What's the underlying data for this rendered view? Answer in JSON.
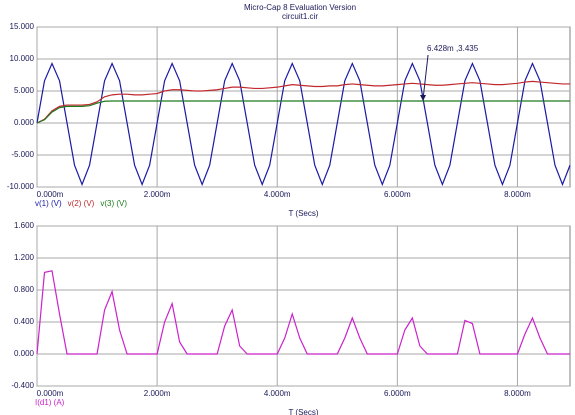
{
  "chart_data": [
    {
      "type": "line",
      "title": "Micro-Cap 8 Evaluation Version",
      "subtitle": "circuit1.cir",
      "x_label": "T (Secs)",
      "x": [
        0,
        0.125,
        0.25,
        0.375,
        0.5,
        0.625,
        0.75,
        0.875,
        1,
        1.125,
        1.25,
        1.375,
        1.5,
        1.625,
        1.75,
        1.875,
        2,
        2.125,
        2.25,
        2.375,
        2.5,
        2.625,
        2.75,
        2.875,
        3,
        3.125,
        3.25,
        3.375,
        3.5,
        3.625,
        3.75,
        3.875,
        4,
        4.125,
        4.25,
        4.375,
        4.5,
        4.625,
        4.75,
        4.875,
        5,
        5.125,
        5.25,
        5.375,
        5.5,
        5.625,
        5.75,
        5.875,
        6,
        6.125,
        6.25,
        6.375,
        6.5,
        6.625,
        6.75,
        6.875,
        7,
        7.125,
        7.25,
        7.375,
        7.5,
        7.625,
        7.75,
        7.875,
        8,
        8.125,
        8.25,
        8.375,
        8.5,
        8.625,
        8.75,
        8.875
      ],
      "series": [
        {
          "name": "v(1) (V)",
          "color": "#1a1aa6",
          "values": [
            0,
            6.6,
            9.3,
            6.6,
            0,
            -6.6,
            -9.6,
            -6.6,
            0,
            6.6,
            9.3,
            6.6,
            0,
            -6.6,
            -9.6,
            -6.6,
            0,
            6.6,
            9.3,
            6.6,
            0,
            -6.6,
            -9.6,
            -6.6,
            0,
            6.6,
            9.3,
            6.6,
            0,
            -6.6,
            -9.6,
            -6.6,
            0,
            6.6,
            9.3,
            6.6,
            0,
            -6.6,
            -9.6,
            -6.6,
            0,
            6.6,
            9.3,
            6.6,
            0,
            -6.6,
            -9.6,
            -6.6,
            0,
            6.6,
            9.3,
            6.6,
            0,
            -6.6,
            -9.6,
            -6.6,
            0,
            6.6,
            9.3,
            6.6,
            0,
            -6.6,
            -9.6,
            -6.6,
            0,
            6.6,
            9.3,
            6.6,
            0,
            -6.6,
            -9.6,
            -6.6
          ]
        },
        {
          "name": "v(2) (V)",
          "color": "#c0282d",
          "values": [
            0,
            0.6,
            1.9,
            2.6,
            2.8,
            2.8,
            2.8,
            2.9,
            3.3,
            4.1,
            4.4,
            4.5,
            4.5,
            4.4,
            4.4,
            4.5,
            4.6,
            5.0,
            5.2,
            5.2,
            5.1,
            5.0,
            5.0,
            5.1,
            5.2,
            5.4,
            5.6,
            5.6,
            5.5,
            5.4,
            5.4,
            5.5,
            5.6,
            5.8,
            6.0,
            5.9,
            5.8,
            5.7,
            5.7,
            5.8,
            5.8,
            6.0,
            6.1,
            6.0,
            5.9,
            5.8,
            5.8,
            5.9,
            6.0,
            6.1,
            6.2,
            6.1,
            6.0,
            5.9,
            5.9,
            6.0,
            6.1,
            6.2,
            6.3,
            6.2,
            6.1,
            6.0,
            6.0,
            6.1,
            6.2,
            6.4,
            6.5,
            6.4,
            6.3,
            6.2,
            6.1,
            6.1
          ]
        },
        {
          "name": "v(3) (V)",
          "color": "#1e7a1e",
          "values": [
            0,
            0.5,
            1.7,
            2.4,
            2.6,
            2.6,
            2.6,
            2.7,
            3.1,
            3.4,
            3.435,
            3.435,
            3.435,
            3.435,
            3.435,
            3.435,
            3.435,
            3.435,
            3.435,
            3.435,
            3.435,
            3.435,
            3.435,
            3.435,
            3.435,
            3.435,
            3.435,
            3.435,
            3.435,
            3.435,
            3.435,
            3.435,
            3.435,
            3.435,
            3.435,
            3.435,
            3.435,
            3.435,
            3.435,
            3.435,
            3.435,
            3.435,
            3.435,
            3.435,
            3.435,
            3.435,
            3.435,
            3.435,
            3.435,
            3.435,
            3.435,
            3.435,
            3.435,
            3.435,
            3.435,
            3.435,
            3.435,
            3.435,
            3.435,
            3.435,
            3.435,
            3.435,
            3.435,
            3.435,
            3.435,
            3.435,
            3.435,
            3.435,
            3.435,
            3.435,
            3.435,
            3.435
          ]
        }
      ],
      "xlim": [
        0,
        8.875
      ],
      "xticks": [
        {
          "value": 0,
          "label": "0.000m"
        },
        {
          "value": 2,
          "label": "2.000m"
        },
        {
          "value": 4,
          "label": "4.000m"
        },
        {
          "value": 6,
          "label": "6.000m"
        },
        {
          "value": 8,
          "label": "8.000m"
        }
      ],
      "ylim": [
        -10,
        15
      ],
      "yticks": [
        {
          "value": -10,
          "label": "-10.000"
        },
        {
          "value": -5,
          "label": "-5.000"
        },
        {
          "value": 0,
          "label": "0.000"
        },
        {
          "value": 5,
          "label": "5.000"
        },
        {
          "value": 10,
          "label": "10.000"
        },
        {
          "value": 15,
          "label": "15.000"
        }
      ],
      "annotation": {
        "text": "6.428m ,3.435",
        "x": 6.428,
        "y": 3.435
      },
      "grid": true
    },
    {
      "type": "line",
      "x_label": "T (Secs)",
      "x": [
        0,
        0.125,
        0.25,
        0.375,
        0.5,
        0.625,
        0.75,
        0.875,
        1,
        1.125,
        1.25,
        1.375,
        1.5,
        1.625,
        1.75,
        1.875,
        2,
        2.125,
        2.25,
        2.375,
        2.5,
        2.625,
        2.75,
        2.875,
        3,
        3.125,
        3.25,
        3.375,
        3.5,
        3.625,
        3.75,
        3.875,
        4,
        4.125,
        4.25,
        4.375,
        4.5,
        4.625,
        4.75,
        4.875,
        5,
        5.125,
        5.25,
        5.375,
        5.5,
        5.625,
        5.75,
        5.875,
        6,
        6.125,
        6.25,
        6.375,
        6.5,
        6.625,
        6.75,
        6.875,
        7,
        7.125,
        7.25,
        7.375,
        7.5,
        7.625,
        7.75,
        7.875,
        8,
        8.125,
        8.25,
        8.375,
        8.5,
        8.625,
        8.75,
        8.875
      ],
      "series": [
        {
          "name": "I(d1) (A)",
          "color": "#cc22cc",
          "values": [
            0,
            1.02,
            1.04,
            0.5,
            0,
            0,
            0,
            0,
            0,
            0.55,
            0.78,
            0.3,
            0,
            0,
            0,
            0,
            0,
            0.4,
            0.63,
            0.15,
            0,
            0,
            0,
            0,
            0,
            0.35,
            0.55,
            0.1,
            0,
            0,
            0,
            0,
            0,
            0.2,
            0.5,
            0.2,
            0,
            0,
            0,
            0,
            0,
            0.2,
            0.45,
            0.2,
            0,
            0,
            0,
            0,
            0,
            0.3,
            0.45,
            0.1,
            0,
            0,
            0,
            0,
            0,
            0.42,
            0.38,
            0,
            0,
            0,
            0,
            0,
            0,
            0.25,
            0.45,
            0.2,
            0,
            0,
            0,
            0
          ]
        }
      ],
      "xlim": [
        0,
        8.875
      ],
      "xticks": [
        {
          "value": 0,
          "label": "0.000m"
        },
        {
          "value": 2,
          "label": "2.000m"
        },
        {
          "value": 4,
          "label": "4.000m"
        },
        {
          "value": 6,
          "label": "6.000m"
        },
        {
          "value": 8,
          "label": "8.000m"
        }
      ],
      "ylim": [
        -0.4,
        1.6
      ],
      "yticks": [
        {
          "value": -0.4,
          "label": "-0.400"
        },
        {
          "value": 0,
          "label": "0.000"
        },
        {
          "value": 0.4,
          "label": "0.400"
        },
        {
          "value": 0.8,
          "label": "0.800"
        },
        {
          "value": 1.2,
          "label": "1.200"
        },
        {
          "value": 1.6,
          "label": "1.600"
        }
      ],
      "grid": true
    }
  ]
}
